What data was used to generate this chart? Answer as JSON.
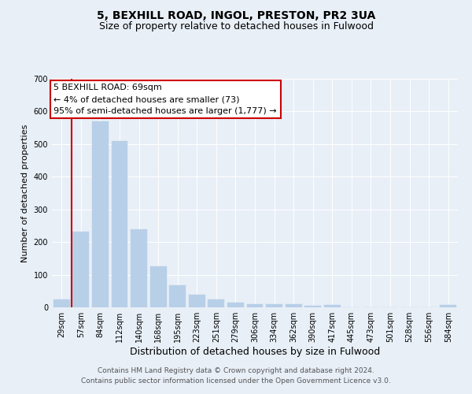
{
  "title": "5, BEXHILL ROAD, INGOL, PRESTON, PR2 3UA",
  "subtitle": "Size of property relative to detached houses in Fulwood",
  "xlabel": "Distribution of detached houses by size in Fulwood",
  "ylabel": "Number of detached properties",
  "categories": [
    "29sqm",
    "57sqm",
    "84sqm",
    "112sqm",
    "140sqm",
    "168sqm",
    "195sqm",
    "223sqm",
    "251sqm",
    "279sqm",
    "306sqm",
    "334sqm",
    "362sqm",
    "390sqm",
    "417sqm",
    "445sqm",
    "473sqm",
    "501sqm",
    "528sqm",
    "556sqm",
    "584sqm"
  ],
  "values": [
    25,
    232,
    570,
    510,
    238,
    125,
    68,
    38,
    25,
    14,
    10,
    10,
    10,
    5,
    8,
    0,
    0,
    0,
    0,
    0,
    8
  ],
  "bar_color": "#b8cfe8",
  "bar_edgecolor": "#b8cfe8",
  "vline_x": 0.5,
  "vline_color": "#cc0000",
  "annotation_text": "5 BEXHILL ROAD: 69sqm\n← 4% of detached houses are smaller (73)\n95% of semi-detached houses are larger (1,777) →",
  "annotation_box_edgecolor": "#cc0000",
  "ylim": [
    0,
    700
  ],
  "yticks": [
    0,
    100,
    200,
    300,
    400,
    500,
    600,
    700
  ],
  "bg_color": "#e8eff7",
  "grid_color": "#ffffff",
  "footer_line1": "Contains HM Land Registry data © Crown copyright and database right 2024.",
  "footer_line2": "Contains public sector information licensed under the Open Government Licence v3.0.",
  "title_fontsize": 10,
  "subtitle_fontsize": 9,
  "xlabel_fontsize": 9,
  "ylabel_fontsize": 8,
  "tick_fontsize": 7,
  "annotation_fontsize": 8,
  "footer_fontsize": 6.5
}
